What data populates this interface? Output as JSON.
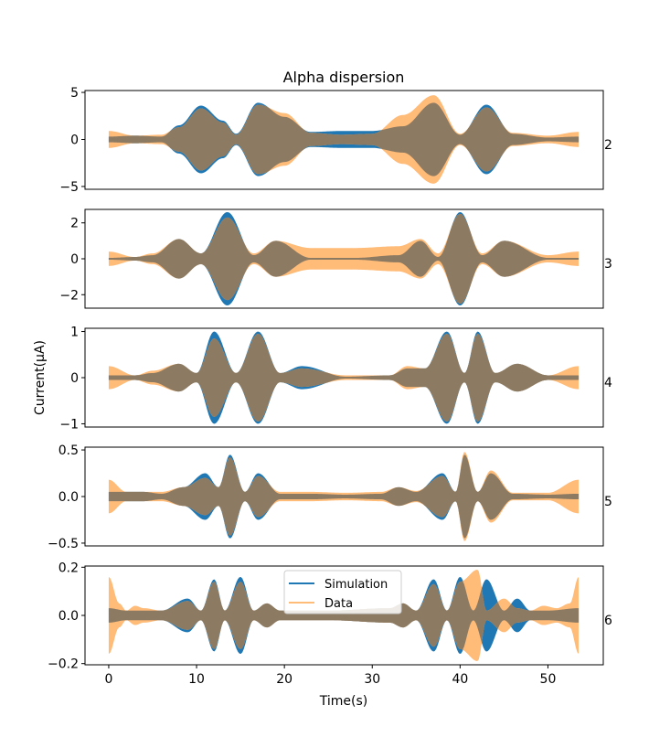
{
  "chart_data": {
    "type": "area",
    "title": "Alpha dispersion",
    "xlabel": "Time(s)",
    "ylabel": "Current(μA)",
    "xlim": [
      -2.7,
      56.3
    ],
    "x_ticks": [
      0,
      10,
      20,
      30,
      40,
      50
    ],
    "x_tick_labels": [
      "0",
      "10",
      "20",
      "30",
      "40",
      "50"
    ],
    "legend": {
      "placement": "upper-center (bottom panel)",
      "entries": [
        {
          "name": "Simulation",
          "color": "#1f77b4"
        },
        {
          "name": "Data",
          "color": "#ffbb78"
        }
      ]
    },
    "overlap_color": "#8c7a62",
    "series_note": "Each panel shows an oscillating current envelope (upper/lower bounds) over time.",
    "panels": [
      {
        "label": "2",
        "ylim": [
          -5.3,
          5.2
        ],
        "yticks": [
          -5,
          0,
          5
        ],
        "ytick_labels": [
          "−5",
          "0",
          "5"
        ],
        "simulation_envelope": {
          "t": [
            0,
            3,
            6,
            8,
            10.5,
            13,
            14.5,
            17,
            20,
            23,
            26.5,
            30,
            33.5,
            37,
            40,
            43,
            46,
            50,
            53.5
          ],
          "a": [
            0.3,
            0.4,
            0.3,
            1.5,
            3.6,
            2.0,
            0.6,
            3.9,
            2.4,
            0.8,
            0.9,
            0.9,
            1.4,
            3.9,
            0.5,
            3.7,
            0.6,
            0.2,
            0.3
          ]
        },
        "data_envelope": {
          "t": [
            0,
            3,
            6,
            8,
            10.5,
            13,
            14.5,
            17,
            20,
            23,
            26.5,
            30,
            33.5,
            37,
            40,
            43,
            46,
            50,
            53.5
          ],
          "a": [
            0.9,
            0.4,
            0.5,
            1.3,
            3.3,
            1.8,
            0.5,
            3.7,
            2.8,
            0.7,
            0.5,
            0.6,
            2.6,
            4.7,
            0.6,
            3.4,
            0.7,
            0.4,
            0.8
          ]
        }
      },
      {
        "label": "3",
        "ylim": [
          -2.75,
          2.75
        ],
        "yticks": [
          -2,
          0,
          2
        ],
        "ytick_labels": [
          "−2",
          "0",
          "2"
        ],
        "simulation_envelope": {
          "t": [
            0,
            3,
            5,
            8,
            10.5,
            13.5,
            16.5,
            19,
            23,
            28,
            33,
            35.5,
            37.5,
            40,
            42.5,
            45,
            50,
            53.5
          ],
          "a": [
            0.05,
            0.1,
            0.2,
            1.1,
            0.3,
            2.6,
            0.2,
            1.0,
            0.05,
            0.05,
            0.2,
            1.0,
            0.1,
            2.6,
            0.2,
            1.0,
            0.05,
            0.05
          ]
        },
        "data_envelope": {
          "t": [
            0,
            3,
            5,
            8,
            10.5,
            13.5,
            16.5,
            19,
            23,
            28,
            33,
            35.5,
            37.5,
            40,
            42.5,
            45,
            50,
            53.5
          ],
          "a": [
            0.4,
            0.1,
            0.3,
            1.1,
            0.3,
            2.3,
            0.3,
            1.0,
            0.6,
            0.6,
            0.7,
            1.1,
            0.3,
            2.5,
            0.3,
            1.0,
            0.2,
            0.4
          ]
        }
      },
      {
        "label": "4",
        "ylim": [
          -1.07,
          1.07
        ],
        "yticks": [
          -1,
          0,
          1
        ],
        "ytick_labels": [
          "−1",
          "0",
          "1"
        ],
        "simulation_envelope": {
          "t": [
            0,
            3,
            5,
            8,
            10,
            12,
            14.5,
            17,
            19.5,
            22,
            27,
            32,
            34,
            36,
            38.5,
            40.5,
            42,
            44,
            46.5,
            50,
            53.5
          ],
          "a": [
            0.05,
            0.05,
            0.1,
            0.3,
            0.1,
            1.0,
            0.1,
            1.0,
            0.1,
            0.25,
            0.02,
            0.05,
            0.2,
            0.2,
            1.0,
            0.1,
            1.0,
            0.1,
            0.3,
            0.05,
            0.05
          ]
        },
        "data_envelope": {
          "t": [
            0,
            3,
            5,
            8,
            10,
            12,
            14.5,
            17,
            19.5,
            22,
            27,
            32,
            34,
            36,
            38.5,
            40.5,
            42,
            44,
            46.5,
            50,
            53.5
          ],
          "a": [
            0.25,
            0.05,
            0.15,
            0.3,
            0.1,
            0.85,
            0.1,
            0.95,
            0.1,
            0.2,
            0.05,
            0.05,
            0.25,
            0.2,
            0.95,
            0.1,
            0.95,
            0.1,
            0.3,
            0.05,
            0.25
          ]
        }
      },
      {
        "label": "5",
        "ylim": [
          -0.53,
          0.53
        ],
        "yticks": [
          -0.5,
          0.0,
          0.5
        ],
        "ytick_labels": [
          "−0.5",
          "0.0",
          "0.5"
        ],
        "simulation_envelope": {
          "t": [
            0,
            2,
            4,
            6,
            8.5,
            11,
            12.5,
            13.8,
            15.5,
            17,
            19.5,
            23,
            27,
            31,
            33,
            35,
            38,
            39.5,
            40.5,
            42,
            43.5,
            46,
            50,
            53.5
          ],
          "a": [
            0.05,
            0.05,
            0.05,
            0.03,
            0.1,
            0.25,
            0.1,
            0.45,
            0.05,
            0.25,
            0.03,
            0.03,
            0.02,
            0.03,
            0.1,
            0.05,
            0.25,
            0.05,
            0.45,
            0.05,
            0.25,
            0.03,
            0.02,
            0.03
          ]
        },
        "data_envelope": {
          "t": [
            0,
            2,
            4,
            6,
            8.5,
            11,
            12.5,
            13.8,
            15.5,
            17,
            19.5,
            23,
            27,
            31,
            33,
            35,
            38,
            39.5,
            40.5,
            42,
            43.5,
            46,
            50,
            53.5
          ],
          "a": [
            0.18,
            0.05,
            0.05,
            0.05,
            0.1,
            0.2,
            0.1,
            0.42,
            0.05,
            0.22,
            0.05,
            0.05,
            0.04,
            0.05,
            0.1,
            0.06,
            0.22,
            0.05,
            0.48,
            0.05,
            0.28,
            0.04,
            0.04,
            0.18
          ]
        }
      },
      {
        "label": "6",
        "ylim": [
          -0.205,
          0.205
        ],
        "yticks": [
          -0.2,
          0.0,
          0.2
        ],
        "ytick_labels": [
          "−0.2",
          "0.0",
          "0.2"
        ],
        "simulation_envelope": {
          "t": [
            0,
            2,
            4,
            6,
            9,
            10.5,
            12,
            13.2,
            15,
            16.5,
            18,
            19.5,
            25,
            32,
            33.5,
            35,
            37,
            38.5,
            40,
            41.5,
            43,
            45,
            46.5,
            48,
            50,
            53.5
          ],
          "a": [
            0.03,
            0.02,
            0.02,
            0.02,
            0.07,
            0.02,
            0.15,
            0.02,
            0.16,
            0.02,
            0.05,
            0.02,
            0.02,
            0.03,
            0.05,
            0.02,
            0.15,
            0.02,
            0.16,
            0.02,
            0.15,
            0.02,
            0.07,
            0.02,
            0.02,
            0.03
          ]
        },
        "data_envelope": {
          "t": [
            0,
            1.2,
            2,
            3,
            4,
            6,
            9,
            10.5,
            12,
            13.2,
            15,
            16.5,
            18,
            19.5,
            25,
            32,
            33.5,
            35,
            37,
            38.5,
            40,
            42,
            43,
            45,
            46.5,
            48,
            49.5,
            51,
            52.5,
            53.5
          ],
          "a": [
            0.16,
            0.05,
            0.02,
            0.04,
            0.03,
            0.02,
            0.06,
            0.02,
            0.14,
            0.02,
            0.14,
            0.02,
            0.05,
            0.02,
            0.02,
            0.03,
            0.05,
            0.02,
            0.13,
            0.02,
            0.14,
            0.19,
            0.02,
            0.07,
            0.03,
            0.02,
            0.04,
            0.03,
            0.05,
            0.16
          ]
        }
      }
    ]
  }
}
